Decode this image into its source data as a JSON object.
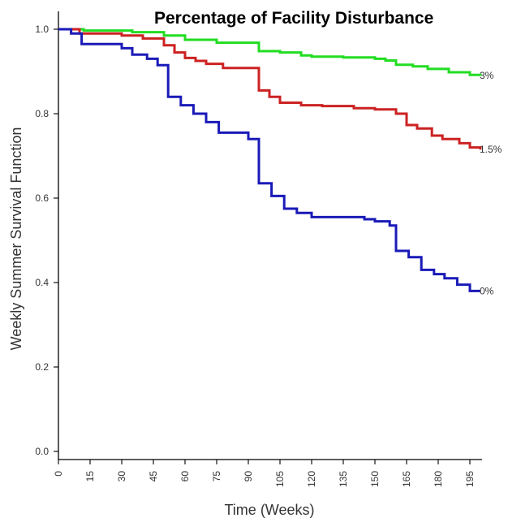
{
  "chart_data": {
    "type": "line",
    "title": "Percentage of Facility Disturbance",
    "xlabel": "Time (Weeks)",
    "ylabel": "Weekly Summer Survival Function",
    "xlim": [
      0,
      200
    ],
    "ylim": [
      0,
      1.0
    ],
    "x_ticks": [
      0,
      15,
      30,
      45,
      60,
      75,
      90,
      105,
      120,
      135,
      150,
      165,
      180,
      195
    ],
    "y_ticks": [
      0.0,
      0.2,
      0.4,
      0.6,
      0.8,
      1.0
    ],
    "x_tick_labels": [
      "0",
      "15",
      "30",
      "45",
      "60",
      "75",
      "90",
      "105",
      "120",
      "135",
      "150",
      "165",
      "180",
      "195"
    ],
    "y_tick_labels": [
      "0.0",
      "0.2",
      "0.4",
      "0.6",
      "0.8",
      "1.0"
    ],
    "step": true,
    "grid": false,
    "series": [
      {
        "name": "3%",
        "color": "#22dd22",
        "points": [
          [
            0,
            1.0
          ],
          [
            12,
            0.997
          ],
          [
            35,
            0.993
          ],
          [
            50,
            0.985
          ],
          [
            60,
            0.975
          ],
          [
            75,
            0.968
          ],
          [
            95,
            0.948
          ],
          [
            105,
            0.945
          ],
          [
            115,
            0.938
          ],
          [
            120,
            0.935
          ],
          [
            135,
            0.933
          ],
          [
            150,
            0.93
          ],
          [
            155,
            0.926
          ],
          [
            160,
            0.916
          ],
          [
            168,
            0.912
          ],
          [
            175,
            0.906
          ],
          [
            185,
            0.898
          ],
          [
            195,
            0.892
          ],
          [
            200,
            0.89
          ]
        ]
      },
      {
        "name": "1.5%",
        "color": "#cc2222",
        "points": [
          [
            0,
            1.0
          ],
          [
            10,
            0.99
          ],
          [
            30,
            0.985
          ],
          [
            40,
            0.978
          ],
          [
            50,
            0.962
          ],
          [
            55,
            0.945
          ],
          [
            60,
            0.932
          ],
          [
            65,
            0.925
          ],
          [
            70,
            0.918
          ],
          [
            78,
            0.908
          ],
          [
            95,
            0.855
          ],
          [
            100,
            0.84
          ],
          [
            105,
            0.826
          ],
          [
            115,
            0.82
          ],
          [
            125,
            0.818
          ],
          [
            140,
            0.813
          ],
          [
            150,
            0.81
          ],
          [
            160,
            0.8
          ],
          [
            165,
            0.773
          ],
          [
            170,
            0.765
          ],
          [
            177,
            0.748
          ],
          [
            182,
            0.74
          ],
          [
            190,
            0.73
          ],
          [
            195,
            0.72
          ],
          [
            200,
            0.715
          ]
        ]
      },
      {
        "name": "0%",
        "color": "#1a1ab8",
        "points": [
          [
            0,
            1.0
          ],
          [
            6,
            0.99
          ],
          [
            11,
            0.965
          ],
          [
            30,
            0.955
          ],
          [
            35,
            0.94
          ],
          [
            42,
            0.93
          ],
          [
            47,
            0.915
          ],
          [
            52,
            0.84
          ],
          [
            58,
            0.82
          ],
          [
            64,
            0.8
          ],
          [
            70,
            0.78
          ],
          [
            76,
            0.755
          ],
          [
            90,
            0.74
          ],
          [
            95,
            0.635
          ],
          [
            101,
            0.605
          ],
          [
            107,
            0.575
          ],
          [
            113,
            0.565
          ],
          [
            120,
            0.555
          ],
          [
            145,
            0.55
          ],
          [
            150,
            0.545
          ],
          [
            157,
            0.535
          ],
          [
            160,
            0.475
          ],
          [
            166,
            0.46
          ],
          [
            172,
            0.43
          ],
          [
            178,
            0.42
          ],
          [
            183,
            0.41
          ],
          [
            189,
            0.395
          ],
          [
            195,
            0.38
          ],
          [
            200,
            0.38
          ]
        ]
      }
    ]
  }
}
